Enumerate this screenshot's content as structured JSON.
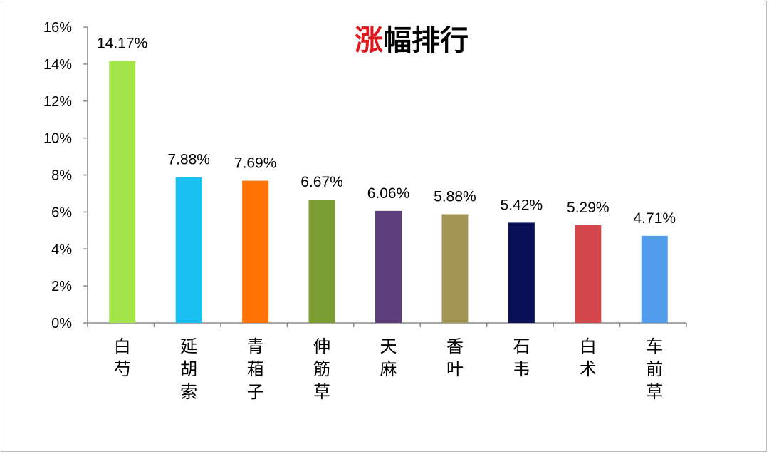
{
  "chart_data": {
    "type": "bar",
    "title": {
      "parts": [
        {
          "text": "涨",
          "color": "#e0191f"
        },
        {
          "text": "幅排行",
          "color": "#000000"
        }
      ]
    },
    "categories": [
      "白芍",
      "延胡索",
      "青葙子",
      "伸筋草",
      "天麻",
      "香叶",
      "石韦",
      "白术",
      "车前草"
    ],
    "values": [
      14.17,
      7.88,
      7.69,
      6.67,
      6.06,
      5.88,
      5.42,
      5.29,
      4.71
    ],
    "data_labels": [
      "14.17%",
      "7.88%",
      "7.69%",
      "6.67%",
      "6.06%",
      "5.88%",
      "5.42%",
      "5.29%",
      "4.71%"
    ],
    "colors": [
      "#a2e44a",
      "#17c0f1",
      "#ff7206",
      "#7a9c31",
      "#5e3f7e",
      "#a39655",
      "#0b1158",
      "#d3474d",
      "#539ceb"
    ],
    "ylim": [
      0,
      16
    ],
    "yticks": [
      0,
      2,
      4,
      6,
      8,
      10,
      12,
      14,
      16
    ],
    "ytick_labels": [
      "0%",
      "2%",
      "4%",
      "6%",
      "8%",
      "10%",
      "12%",
      "14%",
      "16%"
    ],
    "xlabel": "",
    "ylabel": "",
    "grid": false,
    "legend": "none"
  }
}
